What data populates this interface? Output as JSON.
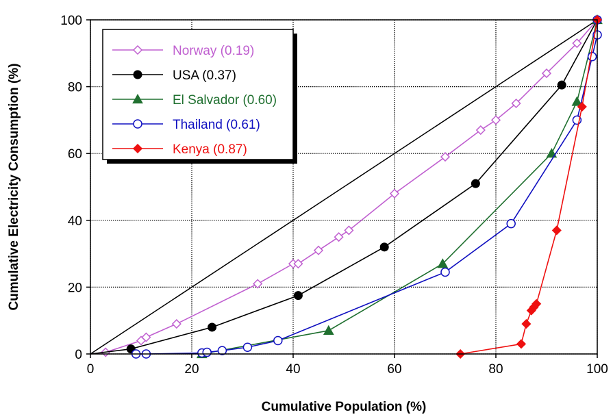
{
  "chart_data": {
    "type": "line",
    "xlabel": "Cumulative Population (%)",
    "ylabel": "Cumulative Electricity Consumption (%)",
    "xlim": [
      0,
      100
    ],
    "ylim": [
      0,
      100
    ],
    "x_ticks": [
      "0",
      "20",
      "40",
      "60",
      "80",
      "100"
    ],
    "y_ticks": [
      "0",
      "20",
      "40",
      "60",
      "80",
      "100"
    ],
    "grid": true,
    "legend_position": "top-left",
    "equality_line": [
      [
        0,
        0
      ],
      [
        100,
        100
      ]
    ],
    "series": [
      {
        "name": "Norway (0.19)",
        "color": "#c060d0",
        "marker": "open-diamond",
        "x": [
          0,
          3,
          10,
          11,
          17,
          33,
          40,
          41,
          45,
          49,
          51,
          60,
          70,
          77,
          80,
          84,
          90,
          96,
          100
        ],
        "y": [
          0,
          0.5,
          4,
          5,
          9,
          21,
          27,
          27,
          31,
          35,
          37,
          48,
          59,
          67,
          70,
          75,
          84,
          93,
          100
        ]
      },
      {
        "name": "USA (0.37)",
        "color": "#000000",
        "marker": "filled-circle",
        "x": [
          0,
          8,
          24,
          41,
          58,
          76,
          93,
          100
        ],
        "y": [
          0,
          1.5,
          8,
          17.5,
          32,
          51,
          80.5,
          100
        ]
      },
      {
        "name": "El Salvador (0.60)",
        "color": "#207030",
        "marker": "filled-triangle",
        "x": [
          22,
          47,
          69.5,
          91,
          96,
          100
        ],
        "y": [
          0,
          7,
          27,
          60,
          75.5,
          100
        ]
      },
      {
        "name": "Thailand (0.61)",
        "color": "#1010c0",
        "marker": "open-circle",
        "x": [
          9,
          11,
          22,
          23,
          26,
          31,
          37,
          70,
          83,
          96,
          99,
          100,
          100
        ],
        "y": [
          0,
          0,
          0.3,
          0.5,
          1,
          2,
          4,
          24.5,
          39,
          70,
          89,
          95.5,
          100
        ]
      },
      {
        "name": "Kenya (0.87)",
        "color": "#ee1010",
        "marker": "filled-diamond",
        "x": [
          73,
          85,
          86,
          87,
          87.5,
          88,
          92,
          97,
          100
        ],
        "y": [
          0,
          3,
          9,
          13,
          14,
          15,
          37,
          74,
          100
        ]
      }
    ]
  }
}
